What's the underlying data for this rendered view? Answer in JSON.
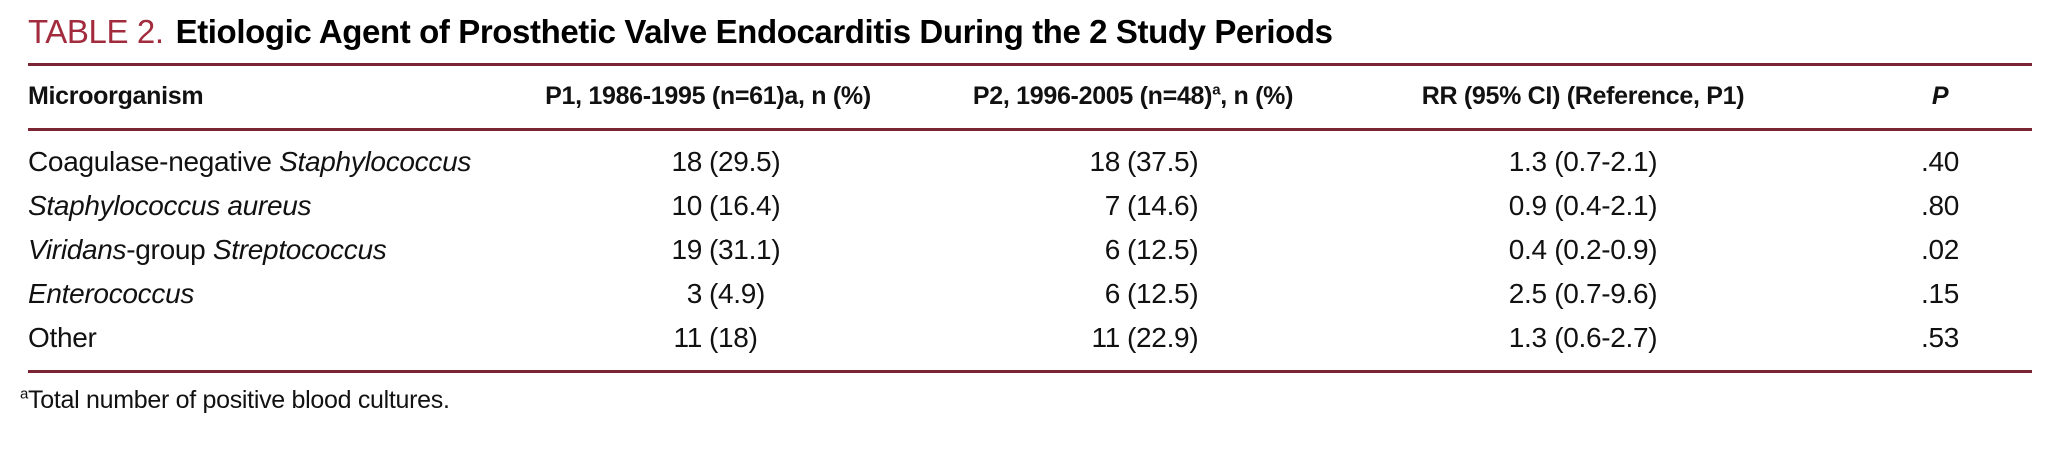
{
  "title": {
    "label": "TABLE 2.",
    "text": "Etiologic Agent of Prosthetic Valve Endocarditis During the 2 Study Periods"
  },
  "colors": {
    "title_label": "#A22C3E",
    "rule": "#7B2433",
    "text": "#111111",
    "background": "#FFFFFF"
  },
  "table": {
    "columns": [
      {
        "segments": [
          {
            "text": "Microorganism"
          }
        ]
      },
      {
        "segments": [
          {
            "text": "P1, 1986-1995 (n=61)a, n (%)"
          }
        ]
      },
      {
        "segments": [
          {
            "text": "P2, 1996-2005 (n=48)"
          },
          {
            "text": "a",
            "sup": true
          },
          {
            "text": ", n (%)"
          }
        ]
      },
      {
        "segments": [
          {
            "text": "RR (95% CI) (Reference, P1)"
          }
        ]
      },
      {
        "segments": [
          {
            "text": "P",
            "italic": true
          }
        ]
      }
    ],
    "rows": [
      {
        "microorganism": [
          {
            "text": "Coagulase-negative "
          },
          {
            "text": "Staphylococcus",
            "italic": true
          }
        ],
        "p1": {
          "count": "18",
          "pct": "(29.5)"
        },
        "p2": {
          "count": "18",
          "pct": "(37.5)"
        },
        "rr": "1.3 (0.7-2.1)",
        "p": ".40"
      },
      {
        "microorganism": [
          {
            "text": "Staphylococcus aureus",
            "italic": true
          }
        ],
        "p1": {
          "count": "10",
          "pct": "(16.4)"
        },
        "p2": {
          "count": "7",
          "pct": "(14.6)"
        },
        "rr": "0.9 (0.4-2.1)",
        "p": ".80"
      },
      {
        "microorganism": [
          {
            "text": "Viridans",
            "italic": true
          },
          {
            "text": "-group "
          },
          {
            "text": "Streptococcus",
            "italic": true
          }
        ],
        "p1": {
          "count": "19",
          "pct": "(31.1)"
        },
        "p2": {
          "count": "6",
          "pct": "(12.5)"
        },
        "rr": "0.4 (0.2-0.9)",
        "p": ".02"
      },
      {
        "microorganism": [
          {
            "text": "Enterococcus",
            "italic": true
          }
        ],
        "p1": {
          "count": "3",
          "pct": "(4.9)"
        },
        "p2": {
          "count": "6",
          "pct": "(12.5)"
        },
        "rr": "2.5 (0.7-9.6)",
        "p": ".15"
      },
      {
        "microorganism": [
          {
            "text": "Other"
          }
        ],
        "p1": {
          "count": "11",
          "pct": "(18)"
        },
        "p2": {
          "count": "11",
          "pct": "(22.9)"
        },
        "rr": "1.3 (0.6-2.7)",
        "p": ".53"
      }
    ]
  },
  "footnote": {
    "segments": [
      {
        "text": "a",
        "sup": true
      },
      {
        "text": "Total number of positive blood cultures."
      }
    ]
  }
}
